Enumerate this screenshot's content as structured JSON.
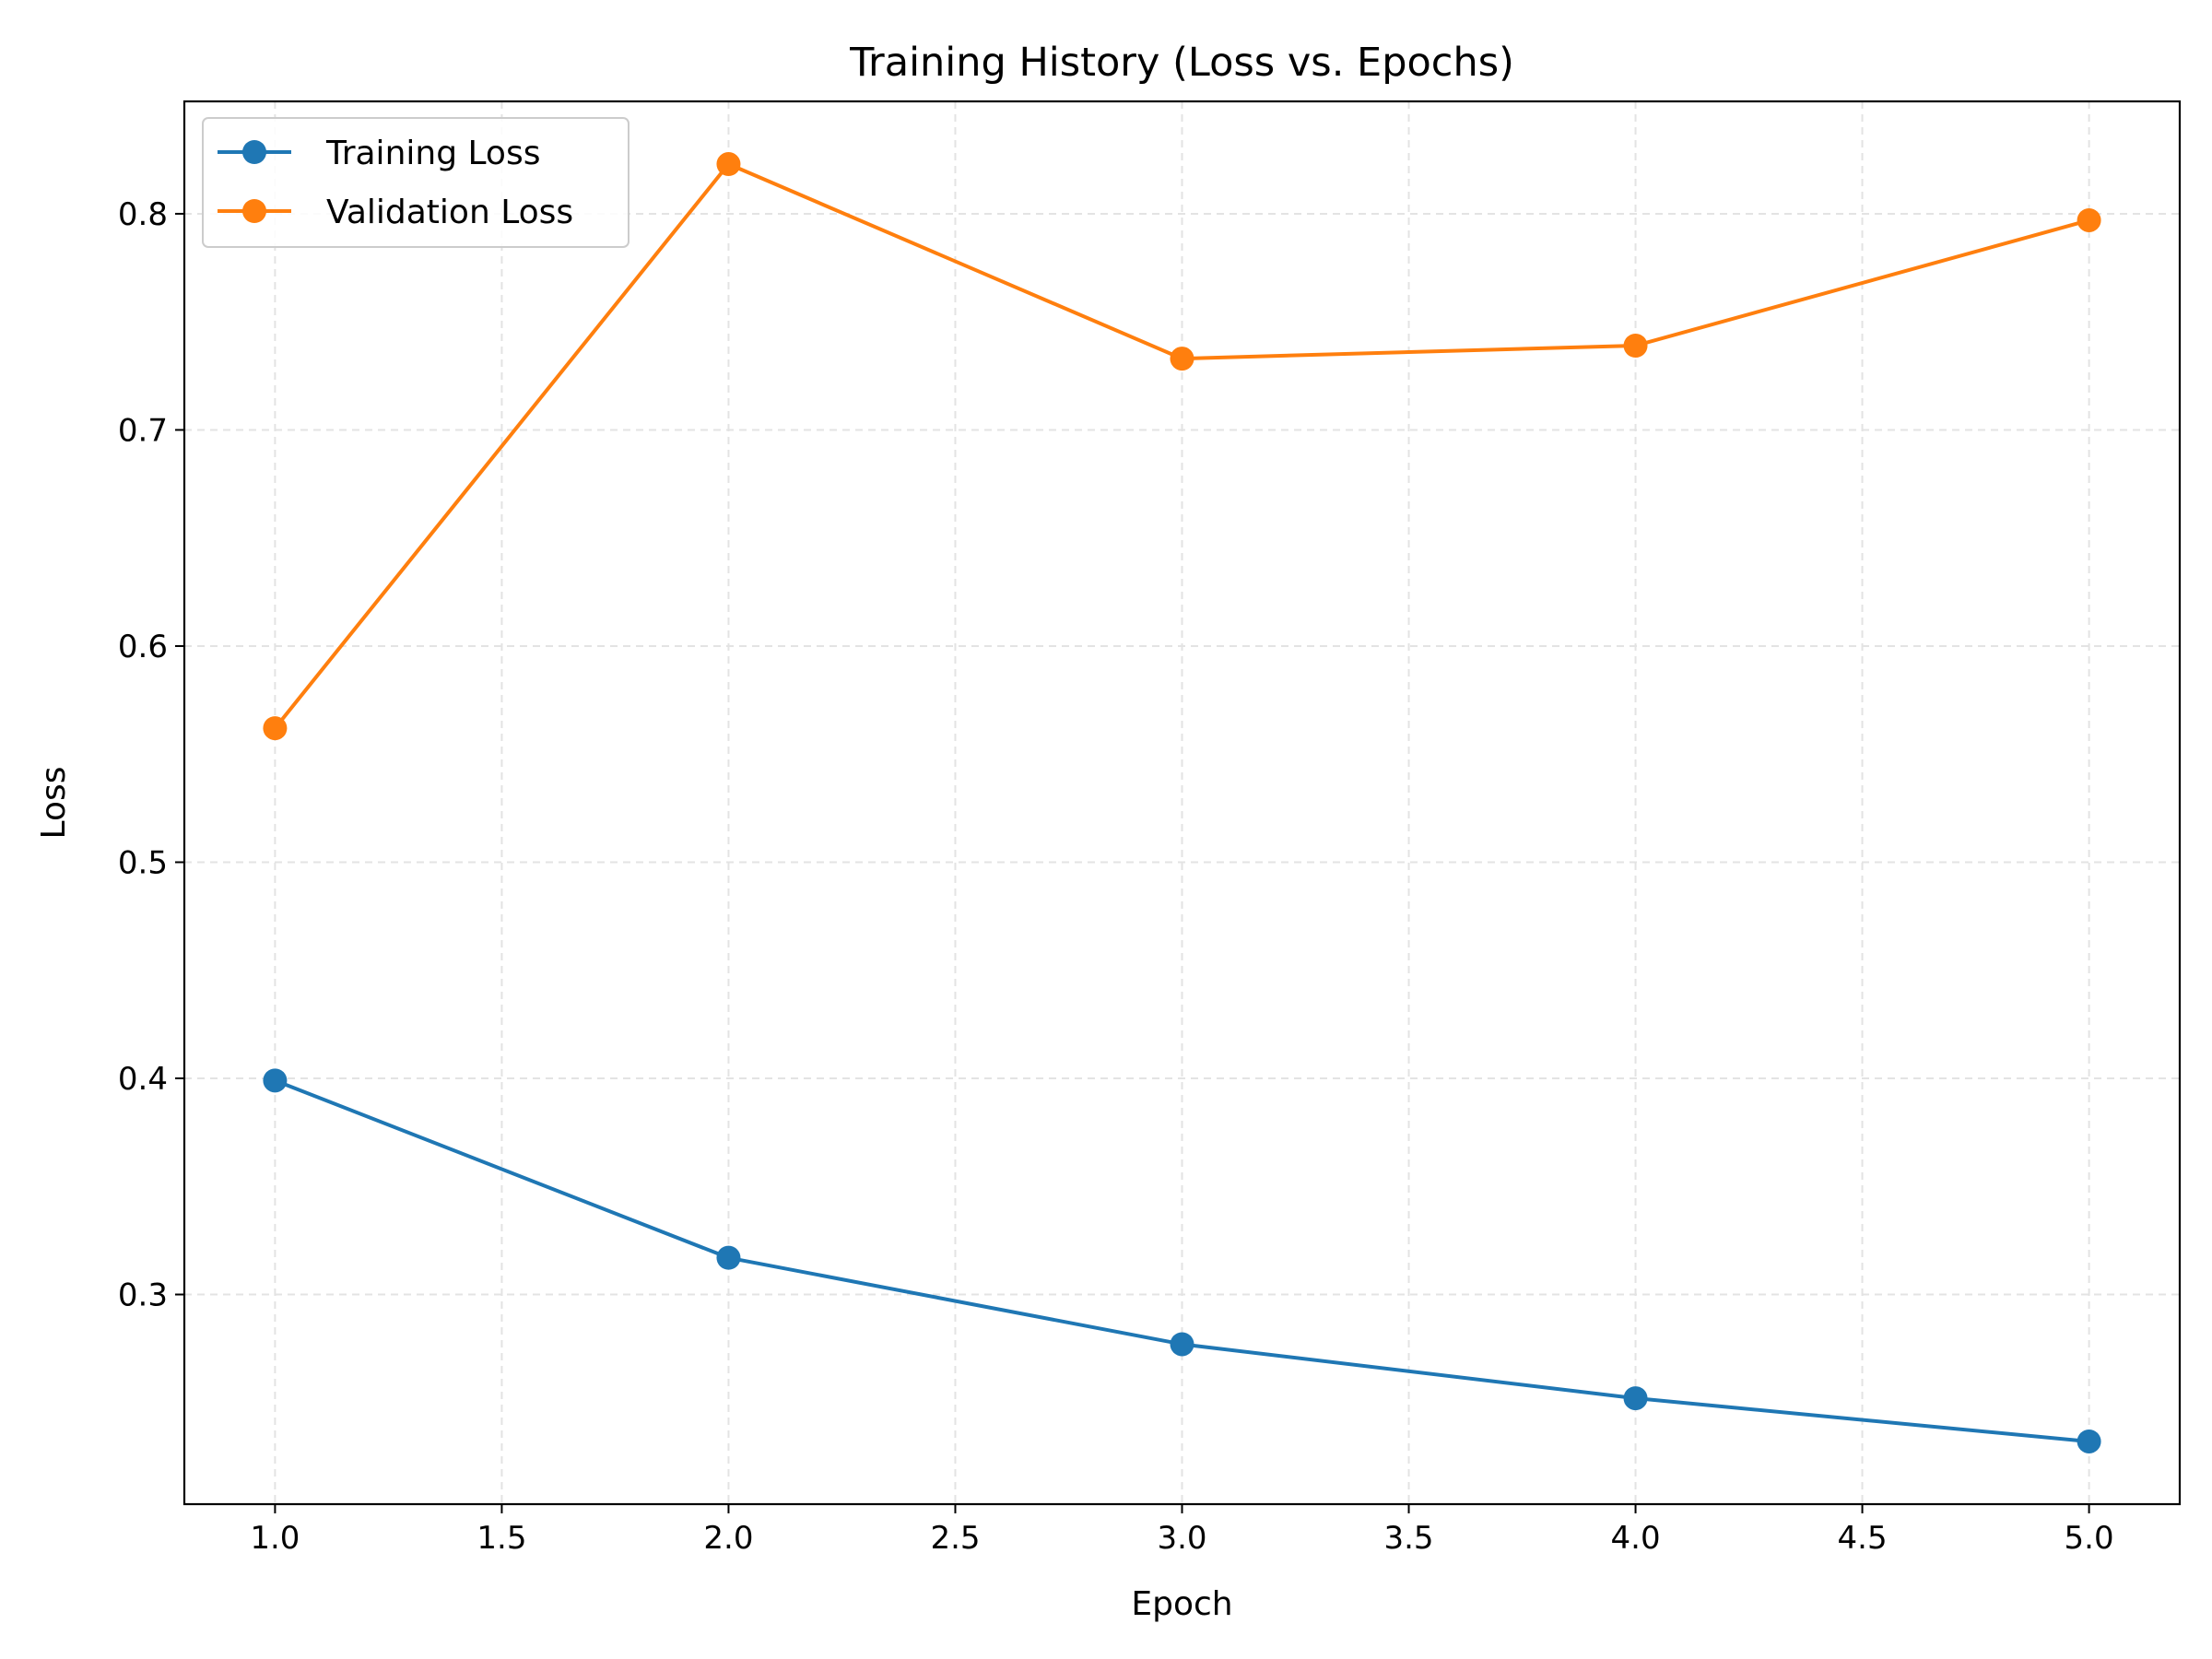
{
  "chart_data": {
    "type": "line",
    "title": "Training History (Loss vs. Epochs)",
    "xlabel": "Epoch",
    "ylabel": "Loss",
    "x": [
      1,
      2,
      3,
      4,
      5
    ],
    "xlim": [
      0.8,
      5.2
    ],
    "ylim": [
      0.203,
      0.852
    ],
    "xticks": [
      1.0,
      1.5,
      2.0,
      2.5,
      3.0,
      3.5,
      4.0,
      4.5,
      5.0
    ],
    "yticks": [
      0.3,
      0.4,
      0.5,
      0.6,
      0.7,
      0.8
    ],
    "xtick_labels": [
      "1.0",
      "1.5",
      "2.0",
      "2.5",
      "3.0",
      "3.5",
      "4.0",
      "4.5",
      "5.0"
    ],
    "ytick_labels": [
      "0.3",
      "0.4",
      "0.5",
      "0.6",
      "0.7",
      "0.8"
    ],
    "grid": true,
    "legend_position": "top-left",
    "series": [
      {
        "name": "Training Loss",
        "color": "#1f77b4",
        "values": [
          0.399,
          0.317,
          0.277,
          0.252,
          0.232
        ]
      },
      {
        "name": "Validation Loss",
        "color": "#ff7f0e",
        "values": [
          0.562,
          0.823,
          0.733,
          0.739,
          0.797
        ]
      }
    ]
  }
}
